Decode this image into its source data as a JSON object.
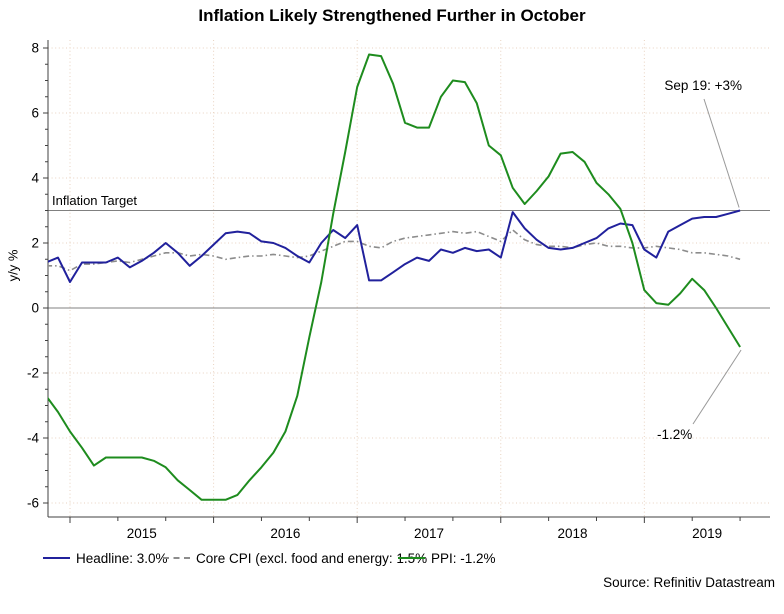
{
  "title": "Inflation Likely Strengthened Further in October",
  "source": "Source: Refinitiv Datastream",
  "chart_data": {
    "type": "line",
    "frequency": "monthly",
    "x_start": "2014-11",
    "x_end": "2019-09",
    "ylabel": "y/y %",
    "ylim": [
      -6.4,
      8.3
    ],
    "y_ticks": [
      8,
      6,
      4,
      2,
      0,
      -2,
      -4,
      -6
    ],
    "x_year_labels": [
      "2015",
      "2016",
      "2017",
      "2018",
      "2019"
    ],
    "grid": "dotted",
    "grid_color": "#e8d2c0",
    "axis_color": "#404040",
    "ref_line_color": "#808080",
    "callout_color": "#999999",
    "reference_lines": [
      {
        "label": "Inflation Target",
        "value": 3
      },
      {
        "label": "zero line",
        "value": 0
      }
    ],
    "annotations": [
      {
        "text": "Sep 19: +3%",
        "points_to": {
          "date": "2019-09",
          "value": 3.0
        }
      },
      {
        "text": "-1.2%",
        "points_to": {
          "date": "2019-09",
          "value": -1.2
        }
      }
    ],
    "series": [
      {
        "name": "Headline",
        "legend": "Headline: 3.0%",
        "last_value": 3.0,
        "color": "#21219c",
        "style": "solid",
        "values": [
          1.4,
          1.55,
          0.8,
          1.4,
          1.4,
          1.4,
          1.55,
          1.25,
          1.45,
          1.7,
          2.0,
          1.7,
          1.3,
          1.6,
          1.95,
          2.3,
          2.35,
          2.3,
          2.05,
          2.0,
          1.85,
          1.6,
          1.4,
          2.0,
          2.4,
          2.15,
          2.55,
          0.85,
          0.85,
          1.1,
          1.35,
          1.55,
          1.45,
          1.8,
          1.7,
          1.85,
          1.75,
          1.8,
          1.55,
          2.95,
          2.45,
          2.1,
          1.85,
          1.8,
          1.85,
          2.0,
          2.15,
          2.45,
          2.6,
          2.55,
          1.8,
          1.55,
          2.35,
          2.55,
          2.75,
          2.8,
          2.8,
          2.9,
          3.0
        ]
      },
      {
        "name": "Core CPI",
        "legend": "Core CPI (excl. food and energy: 1.5%",
        "last_value": 1.5,
        "color": "#8c8c8c",
        "style": "dash-dot",
        "values": [
          1.3,
          1.3,
          1.15,
          1.35,
          1.35,
          1.4,
          1.45,
          1.4,
          1.5,
          1.6,
          1.7,
          1.7,
          1.6,
          1.65,
          1.6,
          1.5,
          1.55,
          1.6,
          1.6,
          1.65,
          1.6,
          1.55,
          1.6,
          1.75,
          1.9,
          2.05,
          2.05,
          1.9,
          1.85,
          2.05,
          2.15,
          2.2,
          2.25,
          2.3,
          2.35,
          2.3,
          2.35,
          2.2,
          2.05,
          2.4,
          2.1,
          1.95,
          1.9,
          1.9,
          1.85,
          1.95,
          2.0,
          1.9,
          1.9,
          1.85,
          1.85,
          1.9,
          1.85,
          1.8,
          1.7,
          1.7,
          1.65,
          1.6,
          1.5
        ]
      },
      {
        "name": "PPI",
        "legend": "PPI: -1.2%",
        "last_value": -1.2,
        "color": "#1e8c1e",
        "style": "solid",
        "values": [
          -2.7,
          -3.2,
          -3.8,
          -4.3,
          -4.85,
          -4.6,
          -4.6,
          -4.6,
          -4.6,
          -4.7,
          -4.9,
          -5.3,
          -5.6,
          -5.9,
          -5.9,
          -5.9,
          -5.75,
          -5.3,
          -4.9,
          -4.45,
          -3.8,
          -2.7,
          -0.9,
          0.8,
          2.9,
          4.8,
          6.8,
          7.8,
          7.75,
          6.9,
          5.7,
          5.55,
          5.55,
          6.5,
          7.0,
          6.95,
          6.3,
          5.0,
          4.7,
          3.7,
          3.2,
          3.6,
          4.05,
          4.75,
          4.8,
          4.5,
          3.85,
          3.5,
          3.05,
          2.0,
          0.55,
          0.15,
          0.1,
          0.45,
          0.9,
          0.55,
          0.0,
          -0.6,
          -1.2
        ]
      }
    ]
  }
}
